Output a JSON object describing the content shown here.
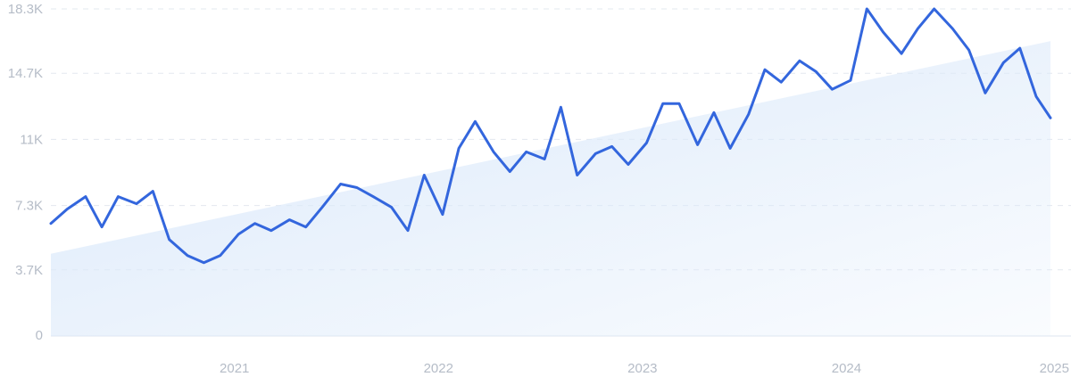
{
  "chart_data": {
    "type": "line",
    "xlabel": "",
    "ylabel": "",
    "ylim": [
      0,
      18300
    ],
    "y_ticks": [
      {
        "value": 0,
        "label": "0"
      },
      {
        "value": 3700,
        "label": "3.7K"
      },
      {
        "value": 7300,
        "label": "7.3K"
      },
      {
        "value": 11000,
        "label": "11K"
      },
      {
        "value": 14700,
        "label": "14.7K"
      },
      {
        "value": 18300,
        "label": "18.3K"
      }
    ],
    "x_ticks": [
      {
        "value": 2021,
        "label": "2021"
      },
      {
        "value": 2022,
        "label": "2022"
      },
      {
        "value": 2023,
        "label": "2023"
      },
      {
        "value": 2024,
        "label": "2024"
      },
      {
        "value": 2025,
        "label": "2025"
      }
    ],
    "xlim": [
      2020.1,
      2025.0
    ],
    "grid": true,
    "colors": {
      "line": "#3366dd",
      "trend_fill": "#dbe9fa",
      "grid": "#e3e8ef",
      "tick_text": "#b5bcc7"
    },
    "trend": {
      "start": 4600,
      "end": 16500
    },
    "series": [
      {
        "x": [
          2020.1,
          2020.18,
          2020.27,
          2020.35,
          2020.43,
          2020.52,
          2020.6,
          2020.68,
          2020.77,
          2020.85,
          2020.93,
          2021.02,
          2021.1,
          2021.18,
          2021.27,
          2021.35,
          2021.43,
          2021.52,
          2021.6,
          2021.68,
          2021.77,
          2021.85,
          2021.93,
          2022.02,
          2022.1,
          2022.18,
          2022.27,
          2022.35,
          2022.43,
          2022.52,
          2022.6,
          2022.68,
          2022.77,
          2022.85,
          2022.93,
          2023.02,
          2023.1,
          2023.18,
          2023.27,
          2023.35,
          2023.43,
          2023.52,
          2023.6,
          2023.68,
          2023.77,
          2023.85,
          2023.93,
          2024.02,
          2024.1,
          2024.18,
          2024.27,
          2024.35,
          2024.43,
          2024.52,
          2024.6,
          2024.68,
          2024.77,
          2024.85,
          2024.93,
          2025.0
        ],
        "values": [
          6300,
          7100,
          7800,
          6100,
          7800,
          7400,
          8100,
          5400,
          4500,
          4100,
          4500,
          5700,
          6300,
          5900,
          6500,
          6100,
          7200,
          8500,
          8300,
          7800,
          7200,
          5900,
          9000,
          6800,
          10500,
          12000,
          10300,
          9200,
          10300,
          9900,
          12800,
          9000,
          10200,
          10600,
          9600,
          10800,
          13000,
          13000,
          10700,
          12500,
          10500,
          12400,
          14900,
          14200,
          15400,
          14800,
          13800,
          14300,
          18300,
          17000,
          15800,
          17200,
          18300,
          17200,
          16000,
          13600,
          15300,
          16100,
          13400,
          12200
        ]
      }
    ]
  }
}
